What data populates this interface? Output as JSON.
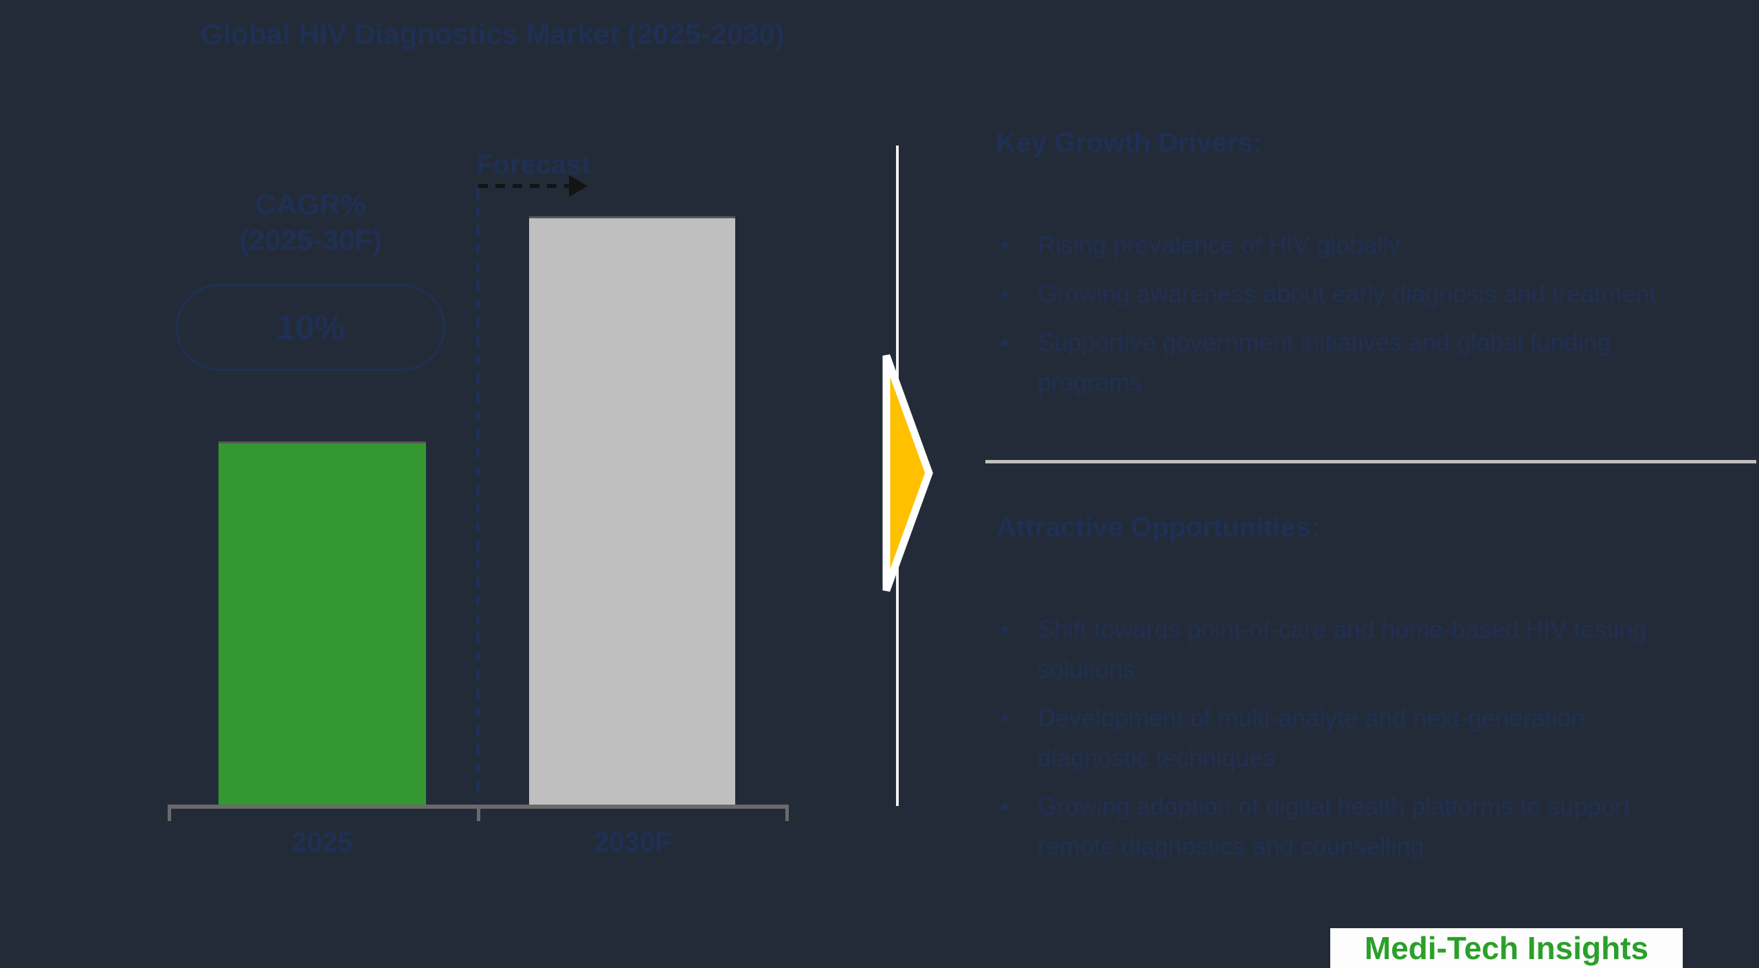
{
  "title": "Global HIV Diagnostics Market (2025-2030)",
  "chart_data": {
    "type": "bar",
    "title": "Global HIV Diagnostics Market (2025-2030)",
    "categories": [
      "2025",
      "2030F"
    ],
    "values": [
      1.0,
      1.62
    ],
    "values_are_relative": true,
    "value_axis_visible": false,
    "grid": false,
    "legend_position": "none",
    "bar_colors": [
      "#349832",
      "#bfbfbf"
    ],
    "annotations": {
      "cagr_label": "CAGR%\n(2025-30F)",
      "cagr_value": "10%",
      "forecast_label": "Forecast"
    }
  },
  "right_panel": {
    "drivers_heading": "Key Growth Drivers:",
    "drivers_bullets": [
      "Rising prevalence of HIV globally",
      "Growing awareness about early diagnosis and treatment",
      "Supportive government initiatives and global funding\nprograms"
    ],
    "opportunities_heading": "Attractive Opportunities:",
    "opportunities_bullets": [
      "Shift towards point-of-care and home-based HIV testing\nsolutions",
      "Development of multi-analyte and next-generation\ndiagnostic techniques",
      "Growing adoption of digital health platforms to support\nremote diagnostics and counselling"
    ]
  },
  "logo_text": "Medi-Tech Insights",
  "colors": {
    "background": "#242b38",
    "navy_text": "#1e3054",
    "bar_green": "#349832",
    "bar_gray": "#bfbfbf",
    "axis_gray": "#6a6a6a",
    "accent_yellow": "#ffc000",
    "separator_white": "#f2f2f2",
    "divider_gray": "#c0c0c0",
    "logo_green": "#2aa02a",
    "logo_background": "#fdfdfd"
  }
}
